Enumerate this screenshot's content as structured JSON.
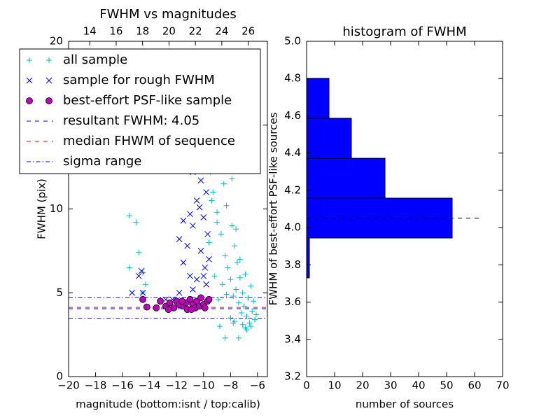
{
  "chart_data": [
    {
      "type": "scatter",
      "title": "FWHM vs magnitudes",
      "xlabel": "magnitude (bottom:isnt / top:calib)",
      "ylabel": "FWHM (pix)",
      "xlim": [
        -20,
        -5.27
      ],
      "xticks": [
        {
          "value": -20,
          "label": "−20"
        },
        {
          "value": -18,
          "label": "−18"
        },
        {
          "value": -16,
          "label": "−16"
        },
        {
          "value": -14,
          "label": "−14"
        },
        {
          "value": -12,
          "label": "−12"
        },
        {
          "value": -10,
          "label": "−10"
        },
        {
          "value": -8,
          "label": "−8"
        },
        {
          "value": -6,
          "label": "−6"
        }
      ],
      "ylim": [
        0,
        20
      ],
      "yticks": [
        0,
        5,
        10,
        15,
        20
      ],
      "x2lim": [
        12.4,
        27.45
      ],
      "x2ticks": [
        14,
        16,
        18,
        20,
        22,
        24,
        26
      ],
      "legend": "upper left",
      "series": [
        {
          "name": "all sample",
          "color": "#00bfbf",
          "marker": "+",
          "x": [
            -15.5,
            -15.0,
            -14.8,
            -15.5,
            -14.5,
            -14.3,
            -14.5,
            -9.8,
            -9.5,
            -9.3,
            -9.1,
            -9.0,
            -8.8,
            -8.7,
            -8.5,
            -8.4,
            -8.3,
            -8.2,
            -8.1,
            -8.0,
            -7.9,
            -7.8,
            -7.7,
            -7.6,
            -7.5,
            -7.4,
            -7.3,
            -7.2,
            -7.1,
            -7.0,
            -6.9,
            -6.8,
            -6.7,
            -6.6,
            -6.5,
            -6.4,
            -6.3,
            -6.2,
            -6.1,
            -9.6,
            -9.2,
            -8.9,
            -8.6,
            -8.3,
            -8.0,
            -7.7,
            -7.4,
            -7.1,
            -6.8,
            -6.5,
            -8.2,
            -7.9,
            -9.4,
            -8.8,
            -7.6,
            -8.4,
            -7.3,
            -9.0,
            -6.9,
            -7.8
          ],
          "y": [
            9.6,
            9.2,
            7.4,
            6.5,
            6.2,
            5.5,
            5.0,
            13.5,
            12.2,
            11.0,
            14.5,
            9.8,
            12.8,
            8.5,
            11.5,
            7.2,
            10.2,
            6.5,
            13.0,
            5.8,
            9.0,
            4.8,
            7.8,
            5.2,
            6.8,
            4.4,
            5.9,
            3.8,
            5.0,
            4.2,
            6.1,
            3.6,
            4.7,
            3.2,
            5.4,
            3.9,
            4.5,
            3.4,
            3.7,
            8.0,
            6.0,
            4.6,
            5.5,
            4.9,
            3.5,
            3.3,
            2.3,
            3.1,
            2.8,
            3.0,
            14.0,
            11.8,
            10.5,
            3.0,
            8.8,
            2.3,
            7.0,
            9.2,
            2.9,
            3.2
          ]
        },
        {
          "name": "sample for rough FWHM",
          "color": "#0000ff",
          "marker": "x",
          "x": [
            -15.3,
            -14.5,
            -14.8,
            -14.6,
            -12.8,
            -11.8,
            -11.5,
            -11.0,
            -10.8,
            -11.2,
            -11.5,
            -11.0,
            -10.5,
            -10.2,
            -10.0,
            -10.5,
            -10.8,
            -9.8,
            -10.0,
            -9.7,
            -10.2,
            -9.9,
            -10.5,
            -10.8,
            -11.8,
            -12.3,
            -9.8,
            -10.0,
            -10.3,
            -9.6
          ],
          "y": [
            5.0,
            5.0,
            6.0,
            6.3,
            4.6,
            8.2,
            9.3,
            9.7,
            9.0,
            7.8,
            6.8,
            6.0,
            10.5,
            11.7,
            12.5,
            13.0,
            12.2,
            11.0,
            9.5,
            8.5,
            7.5,
            6.5,
            5.8,
            5.2,
            5.0,
            4.6,
            5.5,
            6.0,
            10.1,
            7.0
          ]
        },
        {
          "name": "best-effort PSF-like sample",
          "color": "#bf00bf",
          "marker": "o",
          "x": [
            -14.5,
            -14.2,
            -13.2,
            -13.5,
            -12.8,
            -12.5,
            -12.2,
            -12.0,
            -11.8,
            -11.5,
            -11.3,
            -11.2,
            -11.0,
            -10.8,
            -10.6,
            -10.5,
            -10.3,
            -10.2,
            -10.0,
            -9.9,
            -9.7,
            -9.6,
            -12.6,
            -11.6,
            -10.9
          ],
          "y": [
            4.6,
            4.15,
            4.5,
            4.1,
            4.2,
            4.4,
            4.1,
            4.5,
            4.3,
            4.2,
            4.4,
            4.0,
            4.6,
            4.3,
            4.1,
            4.5,
            4.2,
            4.7,
            4.3,
            4.1,
            4.5,
            4.6,
            4.0,
            4.5,
            4.0
          ]
        },
        {
          "name": "resultant FWHM: 4.05",
          "color": "#0000ff",
          "dash": "dashed",
          "hlines": [
            4.05
          ]
        },
        {
          "name": "median FHWM of sequence",
          "color": "#ff0000",
          "dash": "dashed",
          "hlines": [
            4.13
          ]
        },
        {
          "name": "sigma range",
          "color": "#0000ff",
          "dash": "dashdot",
          "hlines": [
            3.47,
            4.72
          ]
        }
      ]
    },
    {
      "type": "histogram",
      "title": "histogram of FWHM",
      "xlabel": "number of sources",
      "ylabel": "FWHM of best-effort PSF-like sources",
      "xlim": [
        0,
        70
      ],
      "xticks": [
        0,
        10,
        20,
        30,
        40,
        50,
        60,
        70
      ],
      "ylim": [
        3.2,
        5.0
      ],
      "yticks": [
        3.2,
        3.4,
        3.6,
        3.8,
        {
          "value": 4.0,
          "label": "4.0"
        },
        4.2,
        4.4,
        4.6,
        4.8,
        {
          "value": 5.0,
          "label": "5.0"
        }
      ],
      "bins": [
        3.516,
        3.73,
        3.944,
        4.158,
        4.372,
        4.587,
        4.801
      ],
      "values": [
        0,
        1,
        52,
        28,
        16,
        8
      ],
      "color": "#0000ff",
      "hline": {
        "y": 4.05,
        "x": [
          0,
          63
        ]
      }
    }
  ]
}
